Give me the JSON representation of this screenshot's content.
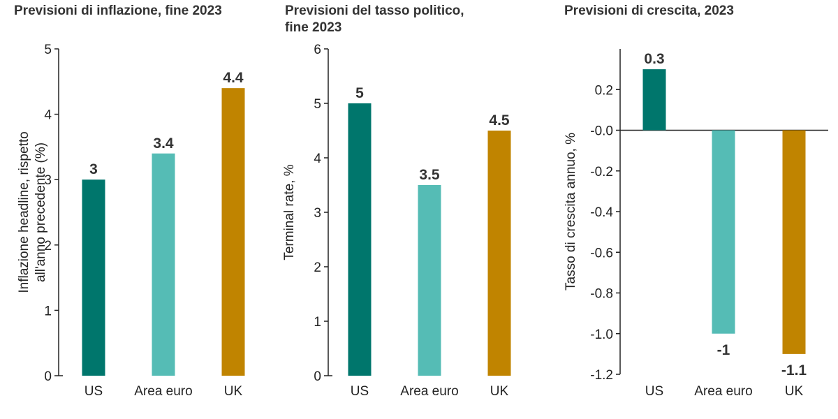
{
  "colors": {
    "US": "#00766c",
    "Area euro": "#55bcb5",
    "UK": "#c08400"
  },
  "chart_data": [
    {
      "type": "bar",
      "title": "Previsioni di inflazione, fine 2023",
      "ylabel_lines": [
        "Inflazione headline, rispetto",
        "all'anno precedente (%)"
      ],
      "categories": [
        "US",
        "Area euro",
        "UK"
      ],
      "values": [
        3,
        3.4,
        4.4
      ],
      "value_labels": [
        "3",
        "3.4",
        "4.4"
      ],
      "ylim": [
        0,
        5
      ],
      "yticks": [
        0,
        1,
        2,
        3,
        4,
        5
      ],
      "ytick_labels": [
        "0",
        "1",
        "2",
        "3",
        "4",
        "5"
      ]
    },
    {
      "type": "bar",
      "title": "Previsioni del tasso politico,\nfine 2023",
      "ylabel_lines": [
        "Terminal rate, %"
      ],
      "categories": [
        "US",
        "Area euro",
        "UK"
      ],
      "values": [
        5,
        3.5,
        4.5
      ],
      "value_labels": [
        "5",
        "3.5",
        "4.5"
      ],
      "ylim": [
        0,
        6
      ],
      "yticks": [
        0,
        1,
        2,
        3,
        4,
        5,
        6
      ],
      "ytick_labels": [
        "0",
        "1",
        "2",
        "3",
        "4",
        "5",
        "6"
      ]
    },
    {
      "type": "bar",
      "title": "Previsioni di crescita, 2023",
      "ylabel_lines": [
        "Tasso di crescita annuo, %"
      ],
      "categories": [
        "US",
        "Area euro",
        "UK"
      ],
      "values": [
        0.3,
        -1,
        -1.1
      ],
      "value_labels": [
        "0.3",
        "-1",
        "-1.1"
      ],
      "ylim": [
        -1.2,
        0.4
      ],
      "yticks": [
        0.2,
        0.0,
        -0.2,
        -0.4,
        -0.6,
        -0.8,
        -1.0,
        -1.2
      ],
      "ytick_labels": [
        "0.2",
        "-0.0",
        "-0.2",
        "-0.4",
        "-0.6",
        "-0.8",
        "-1.0",
        "-1.2"
      ]
    }
  ]
}
